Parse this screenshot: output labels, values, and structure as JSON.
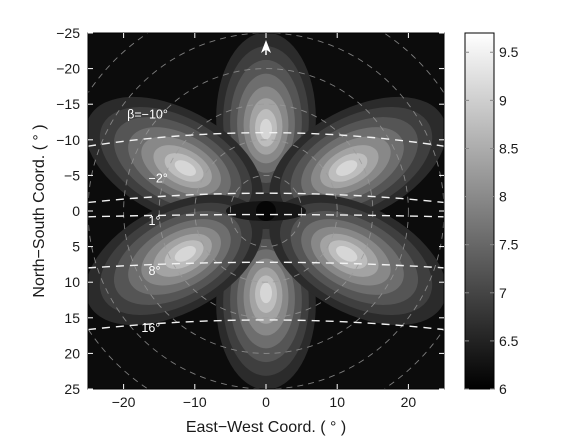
{
  "chart_data": {
    "type": "heatmap",
    "title": "",
    "xlabel": "East−West Coord. ( ° )",
    "ylabel": "North−South Coord. ( ° )",
    "xlim": [
      -25,
      25
    ],
    "ylim": [
      25,
      -25
    ],
    "y_axis_direction": "downward (north at top)",
    "xticks": [
      -20,
      -10,
      0,
      10,
      20
    ],
    "xtick_labels": [
      "−20",
      "−10",
      "0",
      "10",
      "20"
    ],
    "yticks": [
      -25,
      -20,
      -15,
      -10,
      -5,
      0,
      5,
      10,
      15,
      20,
      25
    ],
    "ytick_labels": [
      "−25",
      "−20",
      "−15",
      "−10",
      "−5",
      "0",
      "5",
      "10",
      "15",
      "20",
      "25"
    ],
    "colorbar": {
      "range": [
        6,
        9.7
      ],
      "ticks": [
        6,
        6.5,
        7,
        7.5,
        8,
        8.5,
        9,
        9.5
      ],
      "tick_labels": [
        "6",
        "6.5",
        "7",
        "7.5",
        "8",
        "8.5",
        "9",
        "9.5"
      ],
      "colormap": "gray (black = low, white = high)"
    },
    "pattern": "six-lobe petal pattern centred at (0,0); lobes pointing north, south and along four diagonals",
    "lobes": [
      {
        "direction_deg": 90,
        "length": 24,
        "width": 7
      },
      {
        "direction_deg": -90,
        "length": 24,
        "width": 7
      },
      {
        "direction_deg": 28,
        "length": 27,
        "width": 7.5
      },
      {
        "direction_deg": 152,
        "length": 27,
        "width": 7.5
      },
      {
        "direction_deg": -28,
        "length": 27,
        "width": 7.5
      },
      {
        "direction_deg": -152,
        "length": 27,
        "width": 7.5
      }
    ],
    "beta_curves": {
      "label_prefix": "β=",
      "values": [
        -10,
        -2,
        1,
        8,
        16
      ],
      "labels": [
        "β=−10°",
        "−2°",
        "1°",
        "8°",
        "16°"
      ],
      "approx_y_at_center": [
        -11,
        -2.5,
        0.5,
        7.2,
        15.3
      ],
      "style": "white dashed"
    },
    "background_circles": {
      "radii": [
        5,
        10,
        15,
        20,
        25,
        30
      ],
      "style": "gray dashed"
    },
    "north_arrow": {
      "x": 0,
      "y": -23,
      "label": "north arrow"
    }
  }
}
